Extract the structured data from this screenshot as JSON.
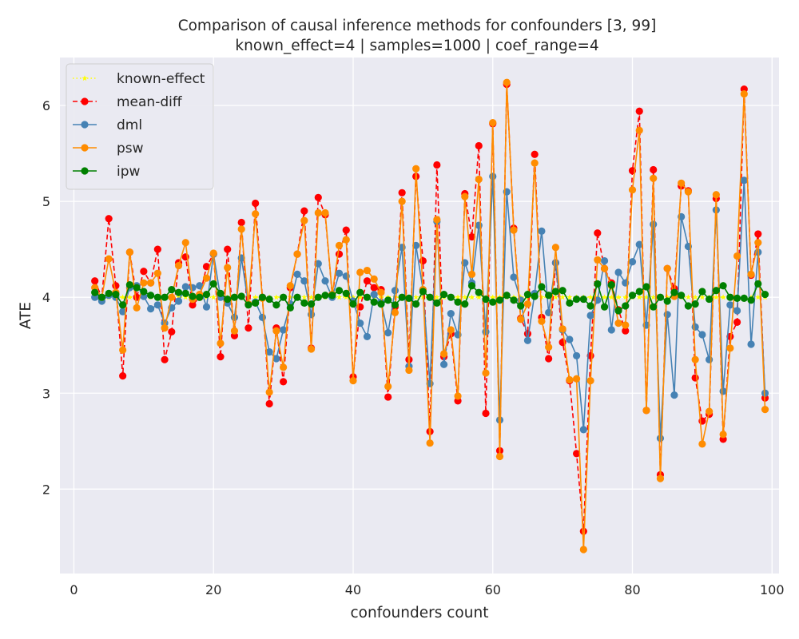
{
  "chart_data": {
    "type": "line",
    "title": "Comparison of causal inference methods for confounders [3, 99]",
    "subtitle": "known_effect=4 | samples=1000 | coef_range=4",
    "xlabel": "confounders count",
    "ylabel": "ATE",
    "xlim": [
      -2,
      101
    ],
    "ylim": [
      1.12,
      6.5
    ],
    "xticks": [
      0,
      20,
      40,
      60,
      80,
      100
    ],
    "yticks": [
      2,
      3,
      4,
      5,
      6
    ],
    "grid": true,
    "legend_position": "top-left",
    "x_start": 3,
    "x_end": 99,
    "series": [
      {
        "name": "known-effect",
        "color": "#ffff00",
        "line_style": "dotted",
        "marker": "star",
        "values": [
          4,
          4,
          4,
          4,
          4,
          4,
          4,
          4,
          4,
          4,
          4,
          4,
          4,
          4,
          4,
          4,
          4,
          4,
          4,
          4,
          4,
          4,
          4,
          4,
          4,
          4,
          4,
          4,
          4,
          4,
          4,
          4,
          4,
          4,
          4,
          4,
          4,
          4,
          4,
          4,
          4,
          4,
          4,
          4,
          4,
          4,
          4,
          4,
          4,
          4,
          4,
          4,
          4,
          4,
          4,
          4,
          4,
          4,
          4,
          4,
          4,
          4,
          4,
          4,
          4,
          4,
          4,
          4,
          4,
          4,
          4,
          4,
          4,
          4,
          4,
          4,
          4,
          4,
          4,
          4,
          4,
          4,
          4,
          4,
          4,
          4,
          4,
          4,
          4,
          4,
          4,
          4,
          4,
          4,
          4,
          4,
          4
        ]
      },
      {
        "name": "mean-diff",
        "color": "#ff0000",
        "line_style": "dashed",
        "marker": "circle",
        "values": [
          4.17,
          4.0,
          4.82,
          4.12,
          3.18,
          4.47,
          4.0,
          4.27,
          4.15,
          4.5,
          3.35,
          3.64,
          4.36,
          4.42,
          3.92,
          4.0,
          4.32,
          4.45,
          3.38,
          4.5,
          3.6,
          4.78,
          3.68,
          4.98,
          4.0,
          2.89,
          3.68,
          3.12,
          4.1,
          4.45,
          4.9,
          3.47,
          5.04,
          4.86,
          4.03,
          4.45,
          4.7,
          3.17,
          3.9,
          4.17,
          4.1,
          4.08,
          2.96,
          3.9,
          5.09,
          3.35,
          5.26,
          4.38,
          2.6,
          5.38,
          3.38,
          3.62,
          2.92,
          5.08,
          4.63,
          5.58,
          2.79,
          5.81,
          2.4,
          6.22,
          4.72,
          3.78,
          3.62,
          5.49,
          3.79,
          3.36,
          4.36,
          3.53,
          3.13,
          2.37,
          1.56,
          3.39,
          4.67,
          4.3,
          4.15,
          3.87,
          3.65,
          5.32,
          5.94,
          2.82,
          5.33,
          2.15,
          4.3,
          4.09,
          5.16,
          5.11,
          3.16,
          2.71,
          2.78,
          5.03,
          2.52,
          3.59,
          3.74,
          6.17,
          4.23,
          4.66,
          2.95
        ]
      },
      {
        "name": "dml",
        "color": "#4682b4",
        "line_style": "solid",
        "marker": "circle",
        "values": [
          4.0,
          3.96,
          4.02,
          4.0,
          3.85,
          4.1,
          4.12,
          4.01,
          3.88,
          3.92,
          3.73,
          3.89,
          3.96,
          4.11,
          4.1,
          4.12,
          3.9,
          4.45,
          4.0,
          3.94,
          3.79,
          4.41,
          3.93,
          3.95,
          3.79,
          3.43,
          3.36,
          3.66,
          3.93,
          4.24,
          4.17,
          3.82,
          4.35,
          4.17,
          4.0,
          4.25,
          4.22,
          3.96,
          3.73,
          3.59,
          4.03,
          3.95,
          3.63,
          4.07,
          4.52,
          3.28,
          4.54,
          4.08,
          3.1,
          4.79,
          3.3,
          3.83,
          3.61,
          4.36,
          4.15,
          4.75,
          3.64,
          5.26,
          2.72,
          5.1,
          4.21,
          3.97,
          3.55,
          4.04,
          4.69,
          3.84,
          4.36,
          3.66,
          3.56,
          3.39,
          2.62,
          3.81,
          3.97,
          4.38,
          3.66,
          4.26,
          4.15,
          4.37,
          4.55,
          3.71,
          4.76,
          2.53,
          3.82,
          2.98,
          4.84,
          4.53,
          3.69,
          3.61,
          3.35,
          4.91,
          3.02,
          3.92,
          3.86,
          5.22,
          3.51,
          4.47,
          3.0
        ]
      },
      {
        "name": "psw",
        "color": "#ff8c00",
        "line_style": "solid",
        "marker": "circle",
        "values": [
          4.1,
          4.0,
          4.4,
          4.05,
          3.45,
          4.47,
          3.89,
          4.15,
          4.15,
          4.25,
          3.68,
          4.0,
          4.33,
          4.57,
          3.98,
          4.03,
          4.2,
          4.46,
          3.52,
          4.31,
          3.65,
          4.71,
          3.93,
          4.87,
          3.99,
          3.01,
          3.65,
          3.27,
          4.12,
          4.45,
          4.8,
          3.46,
          4.88,
          4.88,
          4.03,
          4.54,
          4.6,
          3.13,
          4.26,
          4.28,
          4.19,
          4.05,
          3.07,
          3.84,
          5.0,
          3.24,
          5.34,
          4.08,
          2.48,
          4.81,
          3.41,
          3.66,
          2.97,
          5.05,
          4.24,
          5.23,
          3.21,
          5.82,
          2.34,
          6.24,
          4.7,
          3.77,
          3.93,
          5.4,
          3.75,
          3.48,
          4.52,
          3.67,
          3.14,
          3.15,
          1.37,
          3.13,
          4.39,
          4.3,
          4.12,
          3.73,
          3.71,
          5.12,
          5.74,
          2.82,
          5.24,
          2.11,
          4.3,
          4.01,
          5.19,
          5.1,
          3.35,
          2.47,
          2.81,
          5.07,
          2.57,
          3.47,
          4.43,
          6.12,
          4.24,
          4.57,
          2.83
        ]
      },
      {
        "name": "ipw",
        "color": "#008000",
        "line_style": "solid",
        "marker": "circle",
        "values": [
          4.05,
          4.0,
          4.04,
          4.03,
          3.92,
          4.13,
          4.1,
          4.06,
          4.02,
          4.0,
          4.0,
          4.08,
          4.05,
          4.04,
          4.01,
          4.0,
          4.03,
          4.14,
          4.04,
          3.98,
          4.0,
          4.01,
          3.92,
          3.94,
          4.0,
          3.98,
          3.92,
          4.0,
          3.89,
          4.0,
          3.94,
          3.93,
          4.0,
          4.02,
          4.02,
          4.07,
          4.04,
          3.93,
          4.05,
          4.0,
          3.95,
          3.93,
          3.97,
          3.92,
          4.0,
          3.99,
          3.93,
          4.06,
          4.0,
          3.94,
          4.03,
          4.0,
          3.95,
          3.93,
          4.12,
          4.05,
          3.98,
          3.95,
          3.97,
          4.02,
          3.97,
          3.91,
          4.03,
          4.01,
          4.11,
          4.02,
          4.06,
          4.07,
          3.94,
          3.98,
          3.98,
          3.91,
          4.14,
          3.9,
          4.13,
          3.86,
          3.91,
          4.02,
          4.06,
          4.11,
          3.9,
          4.0,
          3.96,
          4.05,
          4.02,
          3.91,
          3.93,
          4.06,
          3.98,
          4.07,
          4.12,
          4.0,
          3.99,
          3.99,
          3.97,
          4.14,
          4.03
        ]
      }
    ]
  }
}
